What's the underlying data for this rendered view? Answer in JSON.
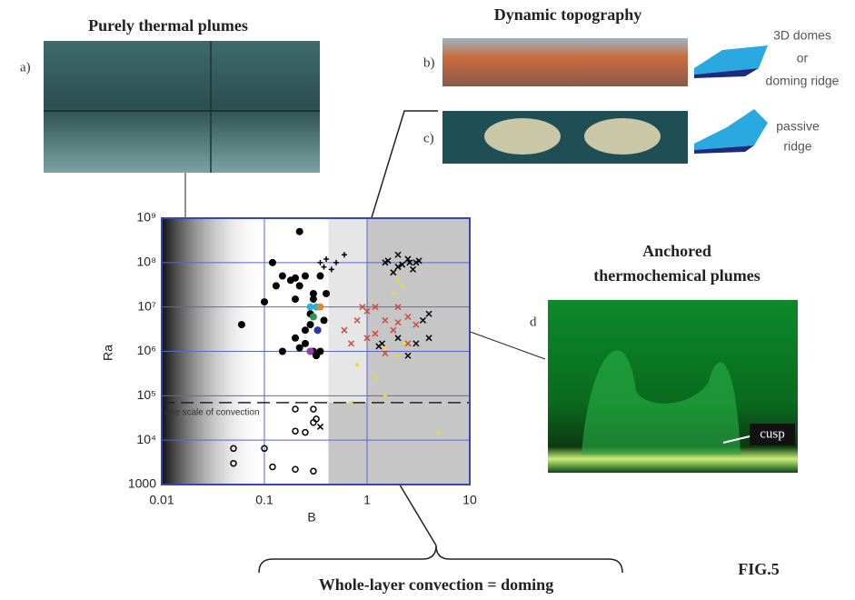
{
  "figure": {
    "panel_a_title": "Purely thermal plumes",
    "label_a": "a)",
    "panel_bc_title": "Dynamic topography",
    "label_b": "b)",
    "label_c": "c)",
    "note_b": [
      "3D domes",
      "or",
      "doming ridge"
    ],
    "note_c": [
      "passive",
      "ridge"
    ],
    "panel_d_title": [
      "Anchored",
      "thermochemical plumes"
    ],
    "label_d": "d",
    "cusp": "cusp",
    "bottom_label": "Whole-layer convection = doming",
    "fig_label": "FIG.5"
  },
  "chart_data": {
    "type": "scatter",
    "x_label": "B",
    "y_label": "Ra",
    "xlog": true,
    "ylog": true,
    "xlim": [
      0.01,
      10
    ],
    "ylim": [
      1000,
      1000000000
    ],
    "xticks": [
      0.01,
      0.1,
      1,
      10
    ],
    "yticks": [
      1000,
      {
        "value": 10000,
        "label": "10⁴"
      },
      {
        "value": 100000,
        "label": "10⁵"
      },
      {
        "value": 1000000,
        "label": "10⁶"
      },
      {
        "value": 10000000,
        "label": "10⁷"
      },
      {
        "value": 100000000,
        "label": "10⁸"
      },
      {
        "value": 1000000000,
        "label": "10⁹"
      }
    ],
    "grid": true,
    "grid_color": "#5b66c9",
    "regions": [
      {
        "x": [
          0.42,
          1
        ],
        "y": [
          70000,
          1000000000
        ],
        "color": "#e6e6e6"
      },
      {
        "x": [
          1,
          10
        ],
        "y": [
          70000,
          1000000000
        ],
        "color": "#c6c6c6"
      },
      {
        "x": [
          0.42,
          10
        ],
        "y": [
          1000,
          70000
        ],
        "color": "#c6c6c6"
      }
    ],
    "threshold": {
      "value": 70000,
      "label": "one scale of convection"
    },
    "series": [
      {
        "marker": "circle",
        "color": "#000000",
        "x": [
          0.22,
          0.06,
          0.1,
          0.12,
          0.15,
          0.18,
          0.2,
          0.22,
          0.13,
          0.15,
          0.2,
          0.25,
          0.3,
          0.32,
          0.3,
          0.25,
          0.28,
          0.35,
          0.3,
          0.22,
          0.35,
          0.28,
          0.33,
          0.4,
          0.38,
          0.2,
          0.25
        ],
        "values": [
          500000000,
          4000000,
          13000000,
          100000000,
          50000000,
          40000000,
          45000000,
          30000000,
          30000000,
          1000000,
          2000000,
          1500000,
          1000000,
          800000,
          20000000,
          50000000,
          7000000,
          50000000,
          15000000,
          1200000,
          1000000,
          4000000,
          3000000,
          20000000,
          5000000,
          15000000,
          3000000
        ]
      },
      {
        "marker": "plus",
        "color": "#000000",
        "x": [
          0.35,
          0.4,
          0.5,
          0.45,
          0.6,
          0.38
        ],
        "values": [
          100000000,
          120000000,
          100000000,
          70000000,
          150000000,
          80000000
        ]
      },
      {
        "marker": "x",
        "color": "#000000",
        "x": [
          1.5,
          2,
          2.5,
          3,
          2,
          1.8,
          2.2,
          2.8,
          3.2,
          1.4,
          3,
          2,
          4,
          3.5,
          4,
          2.5,
          1.3,
          0.35,
          2.6,
          1.6
        ],
        "values": [
          100000000,
          80000000,
          120000000,
          100000000,
          150000000,
          60000000,
          90000000,
          70000000,
          110000000,
          1500000,
          1500000,
          2000000,
          2000000,
          5000000,
          7000000,
          800000,
          1300000,
          20000,
          100000000,
          110000000
        ]
      },
      {
        "marker": "x",
        "color": "#d04a3a",
        "x": [
          0.6,
          0.8,
          1,
          1.2,
          1.5,
          1.8,
          2,
          2.5,
          3,
          0.7,
          1,
          1.5,
          2.5,
          1.2,
          0.9,
          2
        ],
        "values": [
          3000000,
          5000000,
          8000000,
          10000000,
          5000000,
          3000000,
          10000000,
          6000000,
          4000000,
          1500000,
          2000000,
          900000,
          1500000,
          2500000,
          10000000,
          4500000
        ]
      },
      {
        "marker": "dot",
        "color": "#e8d93a",
        "x": [
          2,
          2.2,
          1.8,
          0.8,
          1.2,
          1.5,
          2.3,
          1.5,
          0.7,
          5,
          2
        ],
        "values": [
          40000000,
          30000000,
          20000000,
          500000,
          250000,
          1200000,
          1500000,
          100000,
          70000,
          15000,
          800000
        ]
      },
      {
        "marker": "open-circle",
        "color": "#000000",
        "x": [
          0.05,
          0.1,
          0.2,
          0.25,
          0.3,
          0.32,
          0.2,
          0.3,
          0.05,
          0.12,
          0.2,
          0.3
        ],
        "values": [
          6500,
          6500,
          16000,
          15000,
          25000,
          30000,
          50000,
          50000,
          3000,
          2500,
          2200,
          2000
        ]
      },
      {
        "marker": "circle",
        "color": "#2bb0e0",
        "x": [
          0.32,
          0.28
        ],
        "values": [
          10000000,
          10000000
        ]
      },
      {
        "marker": "circle",
        "color": "#e08a2a",
        "x": [
          0.35
        ],
        "values": [
          10000000
        ]
      },
      {
        "marker": "circle",
        "color": "#2a9a4a",
        "x": [
          0.3
        ],
        "values": [
          6000000
        ]
      },
      {
        "marker": "circle",
        "color": "#9a3ab0",
        "x": [
          0.28
        ],
        "values": [
          1000000
        ]
      },
      {
        "marker": "circle",
        "color": "#2a3ab0",
        "x": [
          0.33
        ],
        "values": [
          3000000
        ]
      }
    ]
  }
}
